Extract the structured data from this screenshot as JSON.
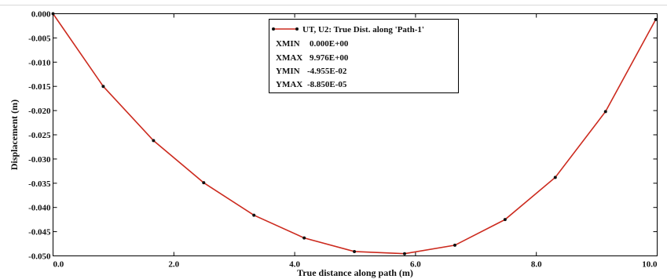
{
  "chart_data": {
    "type": "line",
    "xlabel": "True distance along path (m)",
    "ylabel": "Displacement (m)",
    "xlim": [
      0.0,
      10.0
    ],
    "ylim": [
      -0.05,
      0.0
    ],
    "x_ticks": [
      0.0,
      2.0,
      4.0,
      6.0,
      8.0,
      10.0
    ],
    "x_tick_labels": [
      "0.0",
      "2.0",
      "4.0",
      "6.0",
      "8.0",
      "10.0"
    ],
    "y_ticks": [
      0.0,
      -0.005,
      -0.01,
      -0.015,
      -0.02,
      -0.025,
      -0.03,
      -0.035,
      -0.04,
      -0.045,
      -0.05
    ],
    "y_tick_labels": [
      "0.000",
      "-0.005",
      "-0.010",
      "-0.015",
      "-0.020",
      "-0.025",
      "-0.030",
      "-0.035",
      "-0.040",
      "-0.045",
      "-0.050"
    ],
    "grid": false,
    "legend_placement": "top-center",
    "colors": {
      "line": "#cc2a1e",
      "marker": "#111111"
    },
    "series": [
      {
        "name": "UT, U2: True Dist. along 'Path-1'",
        "x": [
          0.0,
          0.831,
          1.663,
          2.494,
          3.325,
          4.157,
          4.988,
          5.819,
          6.651,
          7.482,
          8.313,
          9.145,
          9.976
        ],
        "y": [
          0.0,
          -0.015,
          -0.0262,
          -0.0349,
          -0.0416,
          -0.0463,
          -0.0491,
          -0.04955,
          -0.0478,
          -0.0425,
          -0.0338,
          -0.0202,
          -0.0012
        ]
      }
    ],
    "legend_stats": [
      {
        "label": "XMIN",
        "value": "0.000E+00"
      },
      {
        "label": "XMAX",
        "value": "9.976E+00"
      },
      {
        "label": "YMIN",
        "value": "-4.955E-02"
      },
      {
        "label": "YMAX",
        "value": "-8.850E-05"
      }
    ]
  }
}
